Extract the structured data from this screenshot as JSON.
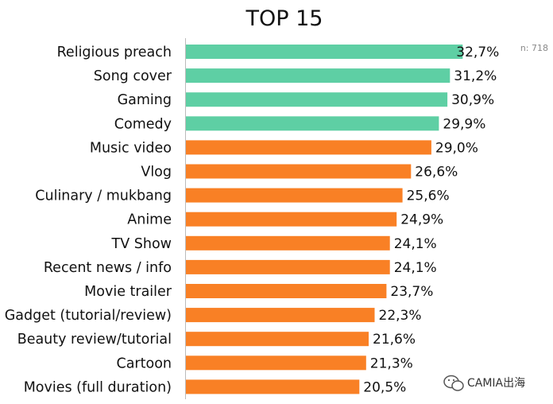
{
  "chart_data": {
    "type": "bar",
    "orientation": "horizontal",
    "title": "TOP 15",
    "sample_note": "n: 718",
    "categories": [
      "Religious preach",
      "Song cover",
      "Gaming",
      "Comedy",
      "Music video",
      "Vlog",
      "Culinary / mukbang",
      "Anime",
      "TV Show",
      "Recent news / info",
      "Movie trailer",
      "Gadget (tutorial/review)",
      "Beauty review/tutorial",
      "Cartoon",
      "Movies (full duration)"
    ],
    "values": [
      32.7,
      31.2,
      30.9,
      29.9,
      29.0,
      26.6,
      25.6,
      24.9,
      24.1,
      24.1,
      23.7,
      22.3,
      21.6,
      21.3,
      20.5
    ],
    "value_labels": [
      "32,7%",
      "31,2%",
      "30,9%",
      "29,9%",
      "29,0%",
      "26,6%",
      "25,6%",
      "24,9%",
      "24,1%",
      "24,1%",
      "23,7%",
      "22,3%",
      "21,6%",
      "21,3%",
      "20,5%"
    ],
    "highlight_count": 4,
    "colors": {
      "highlight": "#5ECFA4",
      "default": "#F98025",
      "axis": "#bbbbbb"
    },
    "xlim": [
      0,
      35
    ],
    "xlabel": "",
    "ylabel": "",
    "grid": false,
    "legend": "none"
  },
  "watermark": {
    "text": "CAMIA出海",
    "icon": "wechat-icon"
  }
}
